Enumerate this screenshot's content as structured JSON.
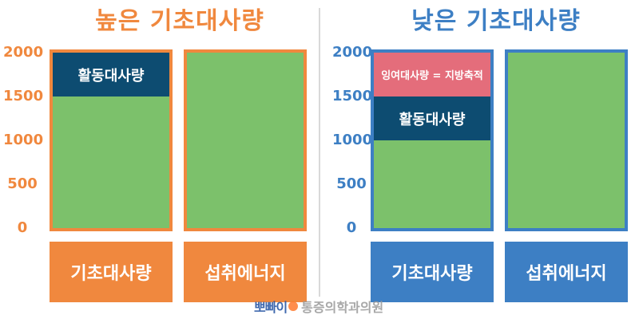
{
  "colors": {
    "orange": "#f0883e",
    "blue": "#3d7fc4",
    "green": "#7cc16b",
    "navy": "#0d4c71",
    "pink": "#e46d7b"
  },
  "watermark": {
    "logo": "뽀빠이",
    "name": "통증의학과의원"
  },
  "chart_data": [
    {
      "type": "bar",
      "title": "높은 기초대사량",
      "ylim": [
        0,
        2000
      ],
      "y_ticks": [
        0,
        500,
        1000,
        1500,
        2000
      ],
      "categories": [
        "기초대사량",
        "섭취에너지"
      ],
      "bars": [
        {
          "category": "기초대사량",
          "segments": [
            {
              "label": "",
              "from": 0,
              "to": 1500,
              "color": "#7cc16b"
            },
            {
              "label": "활동대사량",
              "from": 1500,
              "to": 2000,
              "color": "#0d4c71"
            }
          ]
        },
        {
          "category": "섭취에너지",
          "segments": [
            {
              "label": "",
              "from": 0,
              "to": 2000,
              "color": "#7cc16b"
            }
          ]
        }
      ]
    },
    {
      "type": "bar",
      "title": "낮은 기초대사량",
      "ylim": [
        0,
        2000
      ],
      "y_ticks": [
        0,
        500,
        1000,
        1500,
        2000
      ],
      "categories": [
        "기초대사량",
        "섭취에너지"
      ],
      "bars": [
        {
          "category": "기초대사량",
          "segments": [
            {
              "label": "",
              "from": 0,
              "to": 1000,
              "color": "#7cc16b"
            },
            {
              "label": "활동대사량",
              "from": 1000,
              "to": 1500,
              "color": "#0d4c71"
            },
            {
              "label": "잉여대사량 = 지방축적",
              "from": 1500,
              "to": 2000,
              "color": "#e46d7b"
            }
          ]
        },
        {
          "category": "섭취에너지",
          "segments": [
            {
              "label": "",
              "from": 0,
              "to": 2000,
              "color": "#7cc16b"
            }
          ]
        }
      ]
    }
  ]
}
